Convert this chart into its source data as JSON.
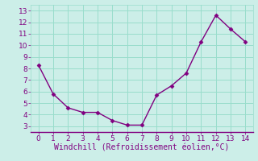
{
  "x": [
    0,
    1,
    2,
    3,
    4,
    5,
    6,
    7,
    8,
    9,
    10,
    11,
    12,
    13,
    14
  ],
  "y": [
    8.3,
    5.8,
    4.6,
    4.2,
    4.2,
    3.5,
    3.1,
    3.1,
    5.7,
    6.5,
    7.6,
    10.3,
    12.6,
    11.4,
    10.3
  ],
  "line_color": "#800080",
  "marker": "D",
  "marker_size": 2.5,
  "xlabel": "Windchill (Refroidissement éolien,°C)",
  "xlim": [
    -0.5,
    14.5
  ],
  "ylim": [
    2.5,
    13.5
  ],
  "xticks": [
    0,
    1,
    2,
    3,
    4,
    5,
    6,
    7,
    8,
    9,
    10,
    11,
    12,
    13,
    14
  ],
  "yticks": [
    3,
    4,
    5,
    6,
    7,
    8,
    9,
    10,
    11,
    12,
    13
  ],
  "bg_color": "#cceee8",
  "grid_color": "#99ddcc",
  "tick_color": "#800080",
  "label_color": "#800080",
  "xlabel_fontsize": 7,
  "tick_fontsize": 6.5,
  "linewidth": 1.0
}
